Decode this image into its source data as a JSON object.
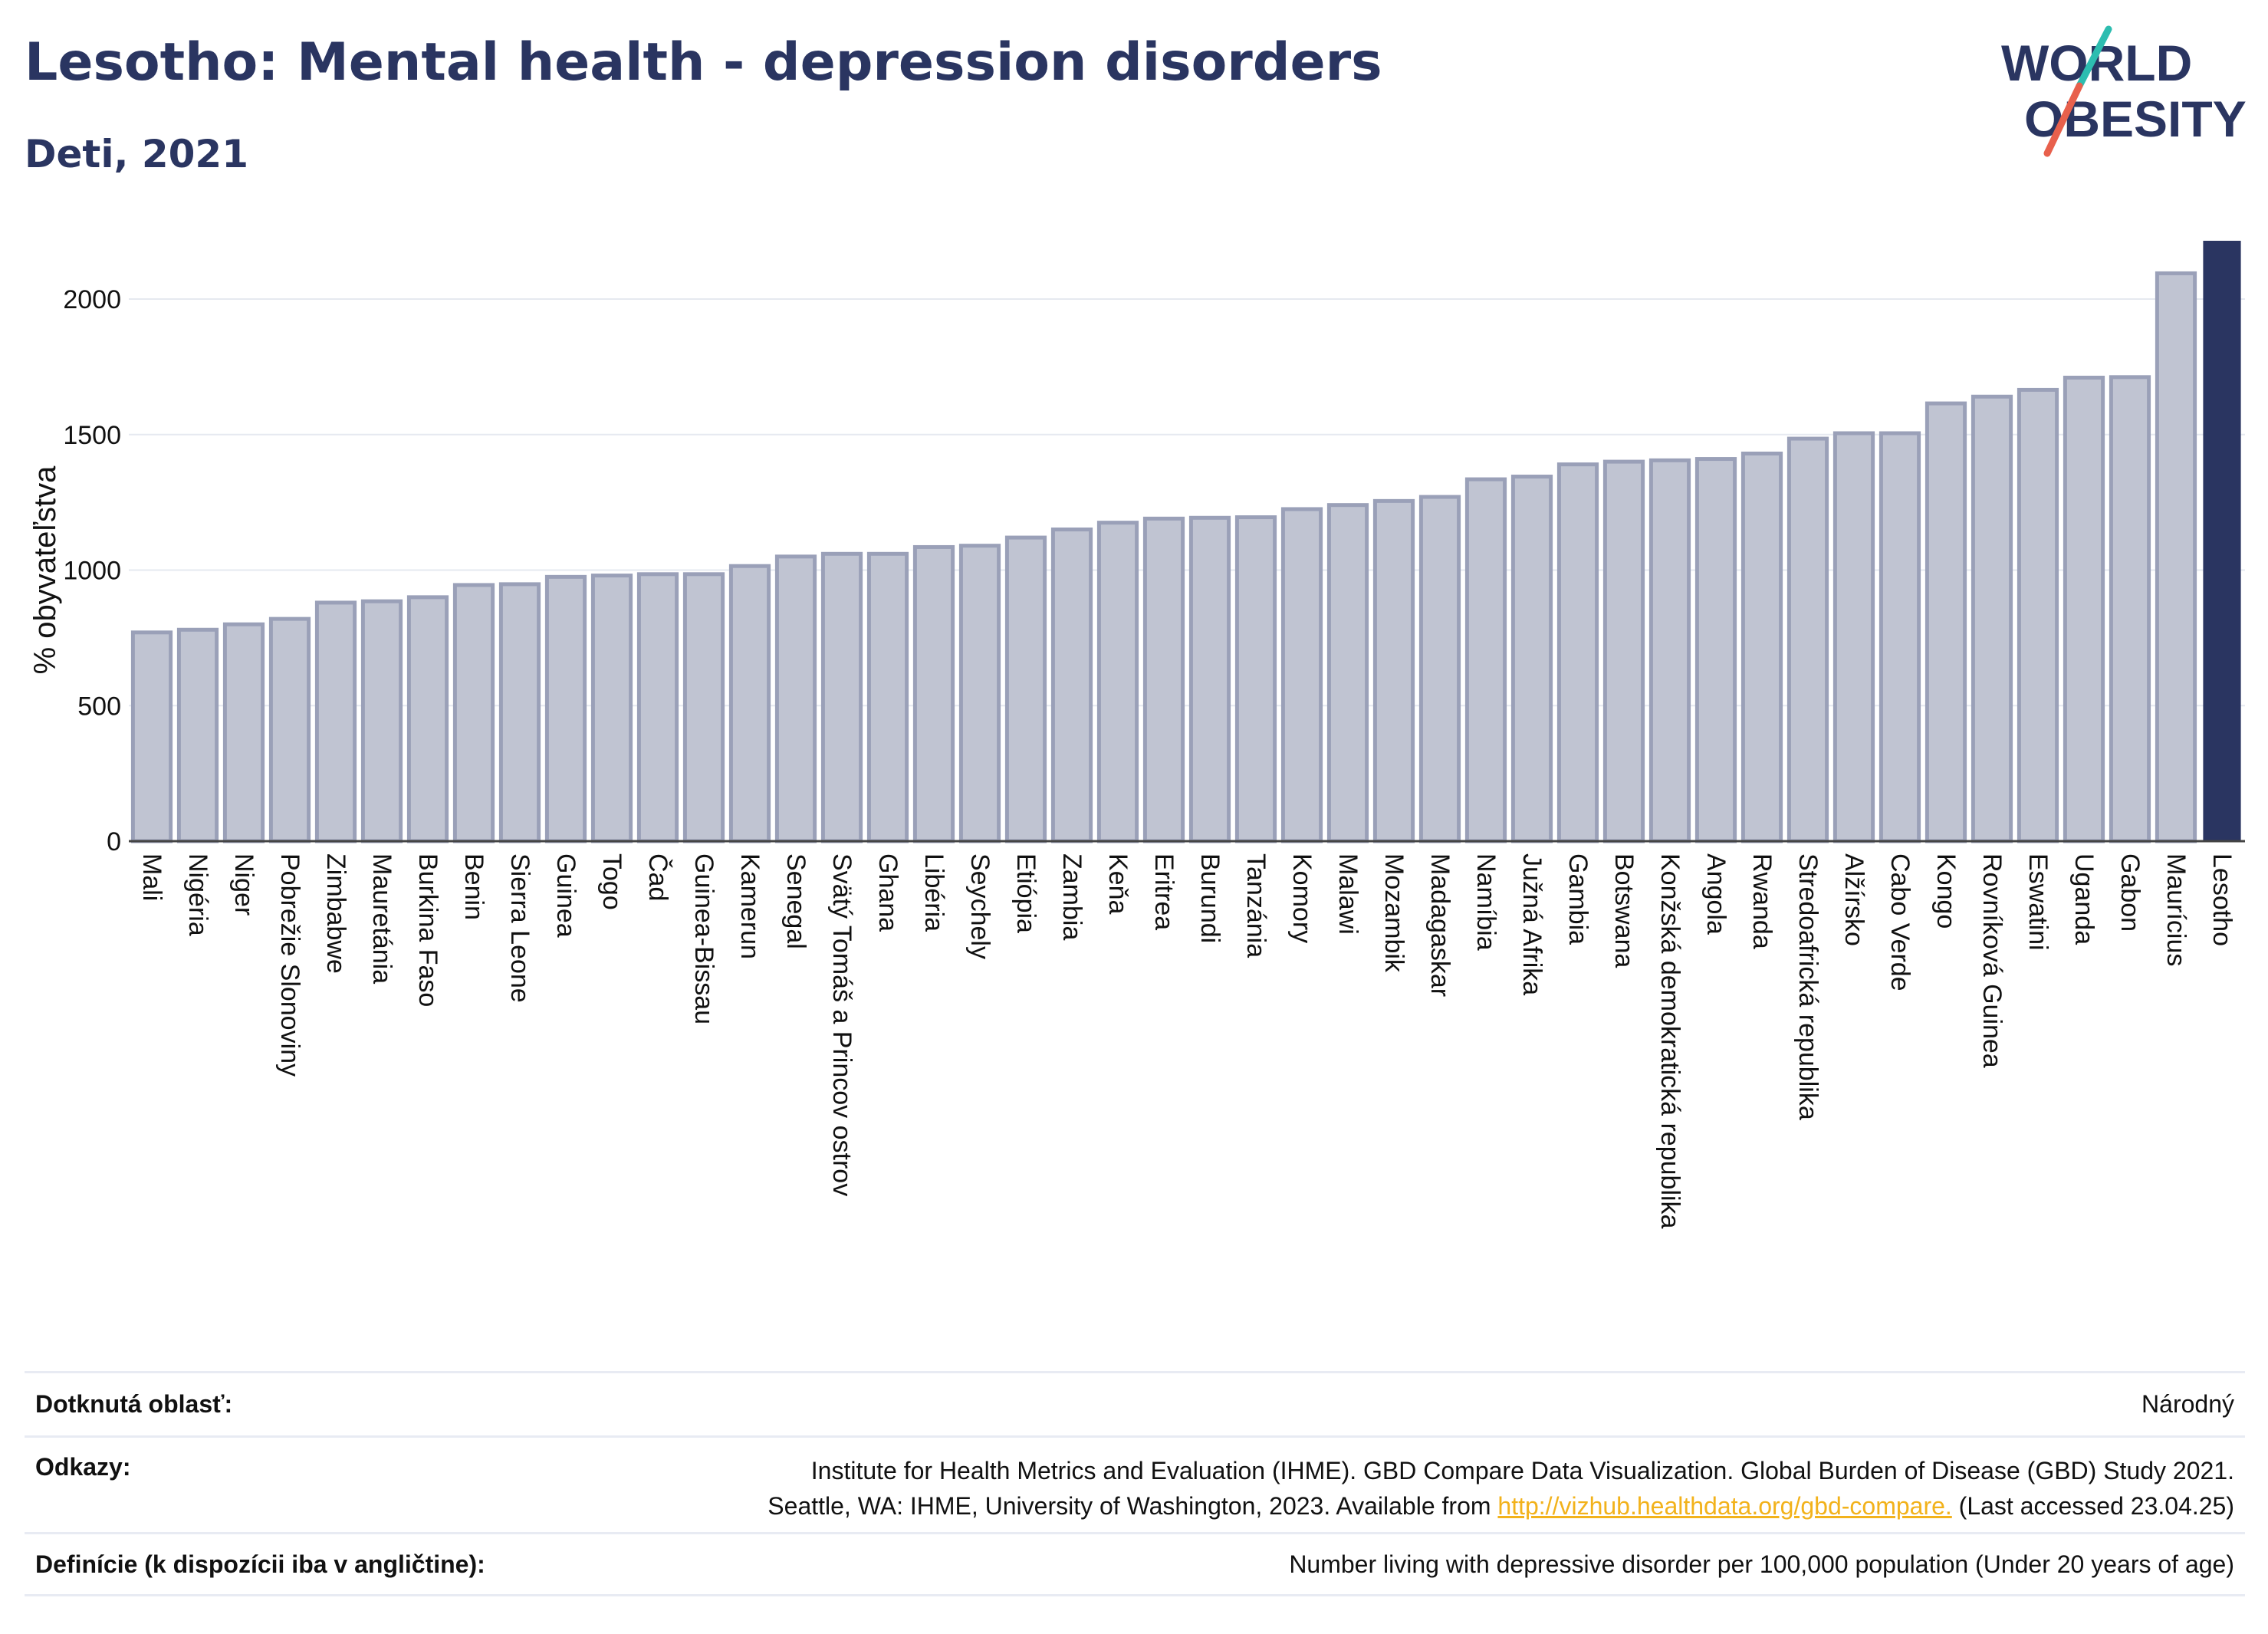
{
  "header": {
    "title": "Lesotho: Mental health - depression disorders",
    "subtitle": "Deti, 2021"
  },
  "logo": {
    "line1": "WORLD",
    "line2": "OBESITY"
  },
  "colors": {
    "title": "#2a3561",
    "bar": "#c0c4d2",
    "bar_stroke": "#9aa0b8",
    "highlight": "#2a3561",
    "grid": "#e6e9f0",
    "link": "#f2b21b",
    "logo_teal": "#2dbdb0",
    "logo_red": "#e8604c"
  },
  "chart_data": {
    "type": "bar",
    "ylabel": "% obyvateľstva",
    "ylim": [
      0,
      2250
    ],
    "yticks": [
      0,
      500,
      1000,
      1500,
      2000
    ],
    "highlight": "Lesotho",
    "categories": [
      "Mali",
      "Nigéria",
      "Niger",
      "Pobrežie Slonoviny",
      "Zimbabwe",
      "Mauretánia",
      "Burkina Faso",
      "Benin",
      "Sierra Leone",
      "Guinea",
      "Togo",
      "Čad",
      "Guinea-Bissau",
      "Kamerun",
      "Senegal",
      "Svätý Tomáš a Princov ostrov",
      "Ghana",
      "Libéria",
      "Seychely",
      "Etiópia",
      "Zambia",
      "Keňa",
      "Eritrea",
      "Burundi",
      "Tanzánia",
      "Komory",
      "Malawi",
      "Mozambik",
      "Madagaskar",
      "Namíbia",
      "Južná Afrika",
      "Gambia",
      "Botswana",
      "Konžská demokratická republika",
      "Angola",
      "Rwanda",
      "Stredoafrická republika",
      "Alžírsko",
      "Cabo Verde",
      "Kongo",
      "Rovníková Guinea",
      "Eswatini",
      "Uganda",
      "Gabon",
      "Maurícius",
      "Lesotho"
    ],
    "values": [
      770,
      780,
      800,
      820,
      880,
      885,
      900,
      945,
      948,
      975,
      980,
      985,
      985,
      1015,
      1050,
      1060,
      1060,
      1085,
      1090,
      1120,
      1150,
      1175,
      1190,
      1193,
      1195,
      1225,
      1240,
      1255,
      1270,
      1335,
      1345,
      1390,
      1400,
      1405,
      1410,
      1430,
      1485,
      1505,
      1505,
      1615,
      1640,
      1665,
      1710,
      1712,
      2095,
      2215
    ]
  },
  "info": {
    "area_label": "Dotknutá oblasť:",
    "area_value": "Národný",
    "refs_label": "Odkazy:",
    "refs_line1": "Institute for Health Metrics and Evaluation (IHME). GBD Compare Data Visualization. Global Burden of Disease (GBD) Study 2021.",
    "refs_line2_pre": "Seattle, WA: IHME, University of Washington, 2023. Available from ",
    "refs_link": "http://vizhub.healthdata.org/gbd-compare.",
    "refs_line2_post": " (Last accessed 23.04.25)",
    "def_label": "Definície (k dispozícii iba v angličtine):",
    "def_value": "Number living with depressive disorder per 100,000 population (Under 20 years of age)"
  }
}
